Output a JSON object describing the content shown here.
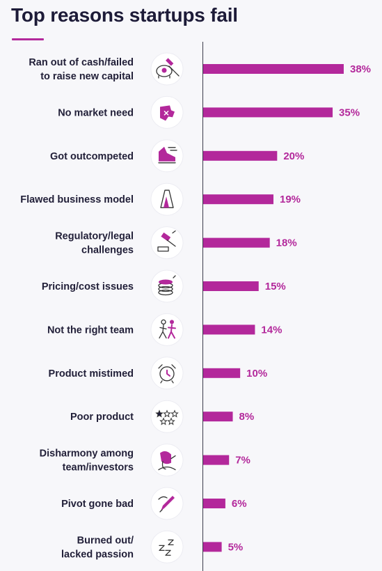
{
  "title": "Top reasons startups fail",
  "accent_color": "#b3289b",
  "chart_data": {
    "type": "bar",
    "orientation": "horizontal",
    "title": "Top reasons startups fail",
    "xlabel": "",
    "ylabel": "",
    "xlim": [
      0,
      38
    ],
    "value_suffix": "%",
    "categories": [
      "Ran out of cash/failed to raise new capital",
      "No market need",
      "Got outcompeted",
      "Flawed business model",
      "Regulatory/legal challenges",
      "Pricing/cost issues",
      "Not the right team",
      "Product mistimed",
      "Poor product",
      "Disharmony among team/investors",
      "Pivot gone bad",
      "Burned out/lacked passion"
    ],
    "label_lines": [
      [
        "Ran out of cash/failed",
        "to raise new capital"
      ],
      [
        "No market need"
      ],
      [
        "Got outcompeted"
      ],
      [
        "Flawed business model"
      ],
      [
        "Regulatory/legal",
        "challenges"
      ],
      [
        "Pricing/cost issues"
      ],
      [
        "Not the right team"
      ],
      [
        "Product mistimed"
      ],
      [
        "Poor product"
      ],
      [
        "Disharmony among",
        "team/investors"
      ],
      [
        "Pivot gone bad"
      ],
      [
        "Burned out/",
        "lacked passion"
      ]
    ],
    "values": [
      38,
      35,
      20,
      19,
      18,
      15,
      14,
      10,
      8,
      7,
      6,
      5
    ],
    "icons": [
      "piggy-bank-hammer-icon",
      "broken-puzzle-icon",
      "running-shoe-icon",
      "house-of-cards-icon",
      "gavel-icon",
      "coin-stack-icon",
      "people-walking-icon",
      "alarm-clock-icon",
      "stars-rating-icon",
      "frustrated-person-icon",
      "pen-icon",
      "sleep-zzz-icon"
    ],
    "grid": false,
    "legend": "none"
  }
}
